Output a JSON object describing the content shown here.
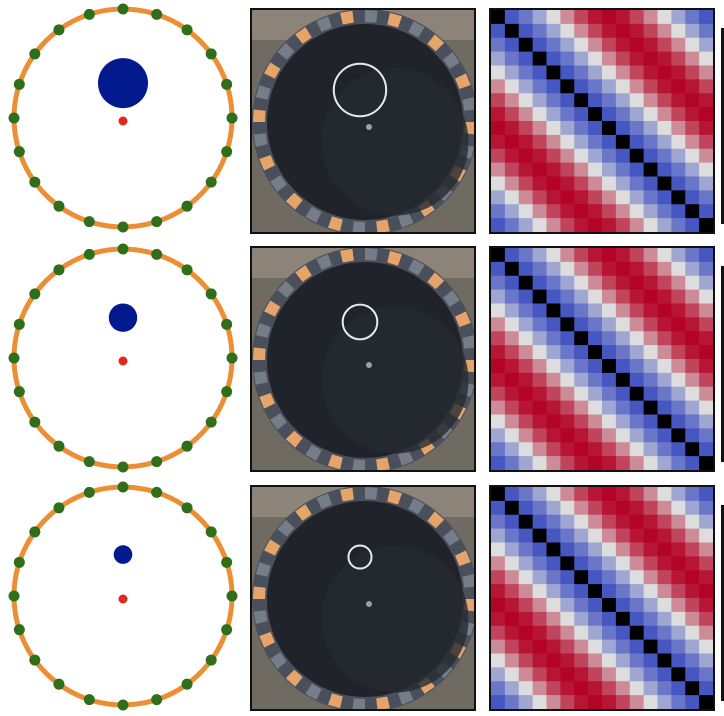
{
  "colors": {
    "ring": "#ec8e35",
    "sensor": "#2f6e1b",
    "source_blob": "#031a8f",
    "center_dot": "#e0281e",
    "photo_bg": "#1b1e24",
    "rim_dark": "#4a505b",
    "rim_tile": "#e4a46a",
    "highlight_ring": "#e8eaec"
  },
  "sensor_count": 20,
  "rows": [
    {
      "blob_radius_fraction": 0.255,
      "blob_offset_fraction": 0.32,
      "photo_ring_radius_fraction": 0.118
    },
    {
      "blob_radius_fraction": 0.145,
      "blob_offset_fraction": 0.37,
      "photo_ring_radius_fraction": 0.078
    },
    {
      "blob_radius_fraction": 0.095,
      "blob_offset_fraction": 0.38,
      "photo_ring_radius_fraction": 0.052
    }
  ],
  "matrix_size": 16,
  "colormap": "coolwarm_with_black_diagonal",
  "icons": {
    "ring": "circular-sensor-array",
    "photo": "tank-photo",
    "matrix": "correlation-heatmap"
  }
}
